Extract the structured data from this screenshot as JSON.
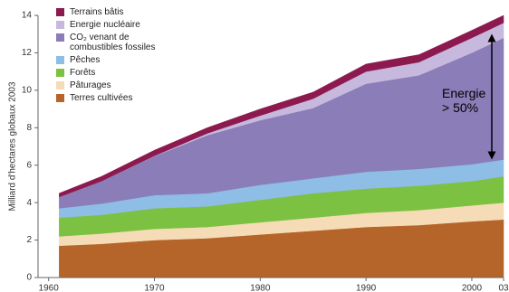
{
  "chart_data": {
    "type": "stacked_area",
    "ylabel": "Milliard d'hectares globaux 2003",
    "annotation": "Energie > 50%",
    "x": [
      1961,
      1965,
      1970,
      1975,
      1980,
      1985,
      1990,
      1995,
      2000,
      2003
    ],
    "series": [
      {
        "name": "Terres cultivées",
        "color": "#b5642a",
        "values": [
          1.7,
          1.8,
          2.0,
          2.1,
          2.3,
          2.5,
          2.7,
          2.8,
          3.0,
          3.1
        ]
      },
      {
        "name": "Pâturages",
        "color": "#f6dcb6",
        "values": [
          0.5,
          0.55,
          0.6,
          0.6,
          0.65,
          0.7,
          0.75,
          0.8,
          0.85,
          0.9
        ]
      },
      {
        "name": "Forêts",
        "color": "#7dc142",
        "values": [
          1.0,
          1.0,
          1.1,
          1.1,
          1.2,
          1.3,
          1.3,
          1.3,
          1.3,
          1.4
        ]
      },
      {
        "name": "Pêches",
        "color": "#8ebde6",
        "values": [
          0.5,
          0.6,
          0.7,
          0.7,
          0.8,
          0.8,
          0.9,
          0.9,
          0.9,
          0.9
        ]
      },
      {
        "name": "CO₂ venant de combustibles fossiles",
        "color": "#8a7db8",
        "values": [
          0.6,
          1.2,
          2.08,
          3.1,
          3.45,
          3.75,
          4.7,
          5.0,
          5.95,
          6.5
        ]
      },
      {
        "name": "Energie nucléaire",
        "color": "#c7b9dd",
        "values": [
          0,
          0,
          0.02,
          0.1,
          0.25,
          0.5,
          0.65,
          0.7,
          0.8,
          0.8
        ]
      },
      {
        "name": "Terrains bâtis",
        "color": "#8c1a4e",
        "values": [
          0.2,
          0.25,
          0.3,
          0.3,
          0.35,
          0.35,
          0.4,
          0.4,
          0.4,
          0.4
        ]
      }
    ],
    "xlim": [
      1959,
      2003
    ],
    "xticks": [
      1960,
      1970,
      1980,
      1990,
      2000,
      {
        "value": 2003,
        "label": "03"
      }
    ],
    "ylim": [
      0,
      14
    ],
    "yticks": [
      0,
      2,
      4,
      6,
      8,
      10,
      12,
      14
    ],
    "grid": false
  }
}
